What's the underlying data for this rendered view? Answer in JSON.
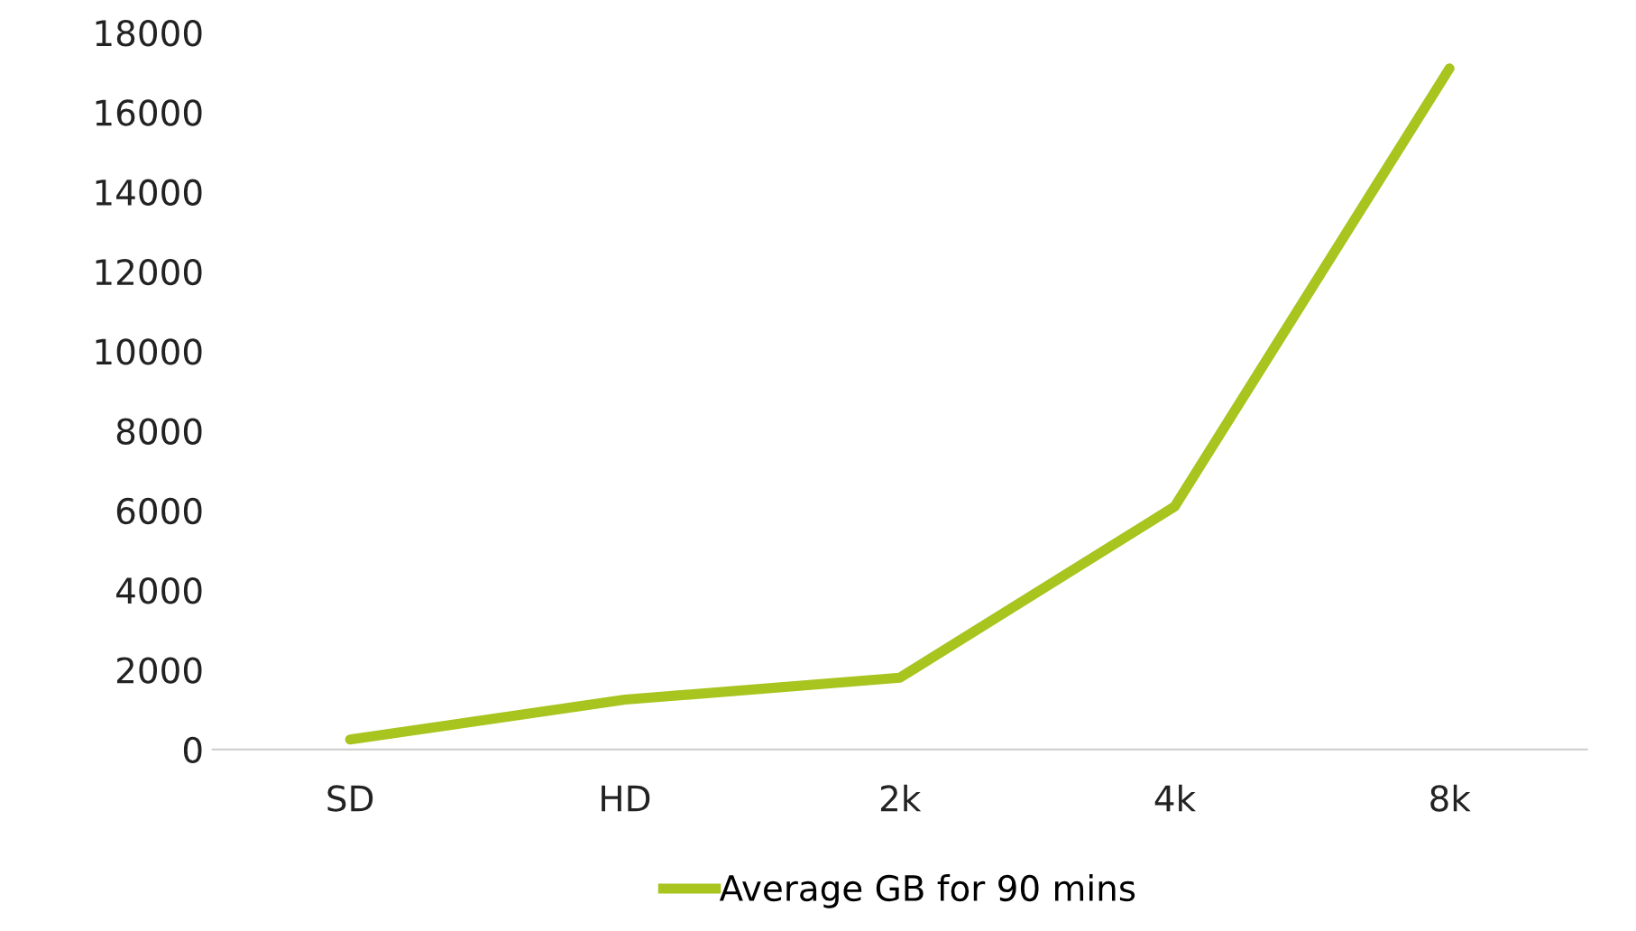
{
  "chart_data": {
    "type": "line",
    "categories": [
      "SD",
      "HD",
      "2k",
      "4k",
      "8k"
    ],
    "series": [
      {
        "name": "Average GB for 90 mins",
        "color": "#a8c41e",
        "values": [
          250,
          1250,
          1800,
          6100,
          17100
        ]
      }
    ],
    "ylim": [
      0,
      18000
    ],
    "yticks": [
      0,
      2000,
      4000,
      6000,
      8000,
      10000,
      12000,
      14000,
      16000,
      18000
    ],
    "grid": false,
    "legend": "bottom",
    "marker": "none",
    "line_style": "solid"
  }
}
